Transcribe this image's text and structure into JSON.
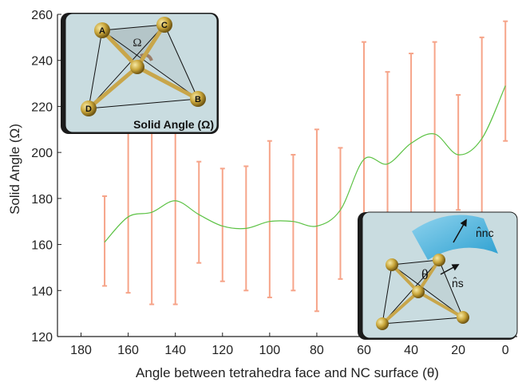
{
  "chart_data": {
    "type": "line",
    "xlabel": "Angle between tetrahedra face and NC surface (θ)",
    "ylabel": "Solid Angle (Ω)",
    "x_reversed": true,
    "xlim": [
      190,
      -5
    ],
    "ylim": [
      120,
      260
    ],
    "x_ticks": [
      "180",
      "160",
      "140",
      "120",
      "100",
      "80",
      "60",
      "40",
      "20",
      "0"
    ],
    "y_ticks": [
      "120",
      "140",
      "160",
      "180",
      "200",
      "220",
      "240",
      "260"
    ],
    "colors": {
      "line": "#5cc244",
      "error_bars": "#f6a489",
      "inset_bg": "#c9dce0"
    },
    "series": [
      {
        "x": [
          170,
          160,
          150,
          140,
          130,
          120,
          110,
          100,
          90,
          80,
          70,
          60,
          50,
          40,
          30,
          20,
          10,
          0
        ],
        "values": [
          161,
          172,
          174,
          179,
          173,
          168,
          167,
          170,
          170,
          168,
          175,
          197,
          195,
          204,
          208,
          199,
          206,
          229
        ],
        "error_low": [
          142,
          139,
          134,
          134,
          152,
          144,
          140,
          137,
          140,
          131,
          145,
          154,
          155,
          162,
          168,
          175,
          162,
          205
        ],
        "error_high": [
          181,
          215,
          225,
          225,
          196,
          193,
          194,
          205,
          199,
          210,
          202,
          248,
          235,
          243,
          248,
          225,
          250,
          257
        ]
      }
    ],
    "grid": false,
    "insets": [
      {
        "caption": "Solid Angle (Ω)",
        "symbol": "Ω",
        "vertex_labels": [
          "A",
          "C",
          "D",
          "B"
        ]
      },
      {
        "symbol": "θ",
        "normal_labels": [
          "n̂nc",
          "n̂s"
        ]
      }
    ]
  }
}
